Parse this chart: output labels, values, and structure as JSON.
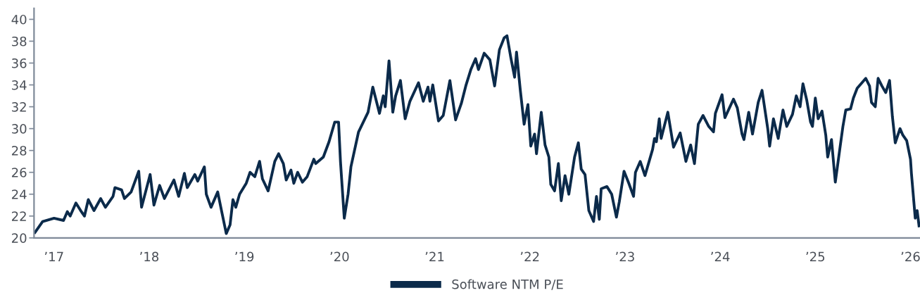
{
  "chart_data": {
    "type": "line",
    "x": [
      2016.8,
      2016.88,
      2017.0,
      2017.1,
      2017.14,
      2017.17,
      2017.23,
      2017.28,
      2017.32,
      2017.36,
      2017.42,
      2017.49,
      2017.54,
      2017.62,
      2017.64,
      2017.71,
      2017.74,
      2017.81,
      2017.89,
      2017.92,
      2018.01,
      2018.05,
      2018.11,
      2018.16,
      2018.26,
      2018.31,
      2018.37,
      2018.4,
      2018.48,
      2018.51,
      2018.58,
      2018.6,
      2018.65,
      2018.72,
      2018.76,
      2018.81,
      2018.85,
      2018.88,
      2018.91,
      2018.95,
      2019.02,
      2019.06,
      2019.11,
      2019.16,
      2019.19,
      2019.25,
      2019.32,
      2019.36,
      2019.41,
      2019.44,
      2019.49,
      2019.52,
      2019.56,
      2019.61,
      2019.66,
      2019.73,
      2019.75,
      2019.83,
      2019.89,
      2019.95,
      2019.99,
      2020.01,
      2020.05,
      2020.09,
      2020.12,
      2020.2,
      2020.3,
      2020.35,
      2020.42,
      2020.46,
      2020.48,
      2020.52,
      2020.56,
      2020.59,
      2020.64,
      2020.69,
      2020.74,
      2020.83,
      2020.88,
      2020.93,
      2020.95,
      2020.98,
      2021.04,
      2021.09,
      2021.16,
      2021.22,
      2021.28,
      2021.33,
      2021.38,
      2021.43,
      2021.46,
      2021.52,
      2021.58,
      2021.63,
      2021.68,
      2021.73,
      2021.76,
      2021.8,
      2021.84,
      2021.86,
      2021.9,
      2021.94,
      2021.98,
      2022.01,
      2022.05,
      2022.07,
      2022.12,
      2022.16,
      2022.2,
      2022.22,
      2022.26,
      2022.3,
      2022.33,
      2022.37,
      2022.41,
      2022.47,
      2022.51,
      2022.54,
      2022.58,
      2022.62,
      2022.67,
      2022.7,
      2022.73,
      2022.75,
      2022.81,
      2022.86,
      2022.91,
      2022.94,
      2022.99,
      2023.04,
      2023.09,
      2023.11,
      2023.16,
      2023.21,
      2023.29,
      2023.31,
      2023.33,
      2023.36,
      2023.38,
      2023.45,
      2023.51,
      2023.58,
      2023.64,
      2023.69,
      2023.73,
      2023.77,
      2023.82,
      2023.88,
      2023.93,
      2023.95,
      2024.02,
      2024.05,
      2024.14,
      2024.18,
      2024.23,
      2024.25,
      2024.3,
      2024.34,
      2024.4,
      2024.44,
      2024.5,
      2024.52,
      2024.56,
      2024.61,
      2024.66,
      2024.7,
      2024.76,
      2024.8,
      2024.84,
      2024.87,
      2024.91,
      2024.95,
      2024.97,
      2025.0,
      2025.03,
      2025.07,
      2025.11,
      2025.13,
      2025.17,
      2025.21,
      2025.26,
      2025.29,
      2025.32,
      2025.37,
      2025.4,
      2025.44,
      2025.49,
      2025.53,
      2025.57,
      2025.59,
      2025.63,
      2025.66,
      2025.7,
      2025.74,
      2025.78,
      2025.81,
      2025.84,
      2025.89,
      2025.92,
      2025.96,
      2026.0,
      2026.01,
      2026.05,
      2026.07,
      2026.09
    ],
    "series": [
      {
        "name": "Software NTM P/E",
        "color": "#0b2a4a",
        "values": [
          20.5,
          21.5,
          21.8,
          21.6,
          22.4,
          22.0,
          23.2,
          22.5,
          22.0,
          23.5,
          22.5,
          23.6,
          22.8,
          23.8,
          24.6,
          24.4,
          23.6,
          24.2,
          26.1,
          22.8,
          25.8,
          23.0,
          24.8,
          23.6,
          25.3,
          23.8,
          25.9,
          24.6,
          25.8,
          25.2,
          26.5,
          24.0,
          22.8,
          24.2,
          22.5,
          20.4,
          21.2,
          23.5,
          22.8,
          24.0,
          25.0,
          26.0,
          25.6,
          27.0,
          25.4,
          24.3,
          27.0,
          27.7,
          26.8,
          25.3,
          26.2,
          25.0,
          26.0,
          25.1,
          25.6,
          27.2,
          26.8,
          27.4,
          28.8,
          30.6,
          30.6,
          27.0,
          21.8,
          24.0,
          26.5,
          29.7,
          31.5,
          33.8,
          31.4,
          33.0,
          32.0,
          36.2,
          31.5,
          33.0,
          34.4,
          30.9,
          32.5,
          34.2,
          32.5,
          33.8,
          32.5,
          34.0,
          30.7,
          31.2,
          34.4,
          30.8,
          32.3,
          34.0,
          35.4,
          36.4,
          35.4,
          36.9,
          36.3,
          33.9,
          37.2,
          38.3,
          38.5,
          36.5,
          34.7,
          37.0,
          33.5,
          30.4,
          32.2,
          28.4,
          29.5,
          27.7,
          31.5,
          28.5,
          27.4,
          24.9,
          24.3,
          26.8,
          23.4,
          25.7,
          24.0,
          27.4,
          28.7,
          26.3,
          25.8,
          22.5,
          21.5,
          23.8,
          21.7,
          24.5,
          24.7,
          24.0,
          21.9,
          23.3,
          26.1,
          25.0,
          23.8,
          26.0,
          27.0,
          25.7,
          28.1,
          29.1,
          28.8,
          30.9,
          29.1,
          31.5,
          28.3,
          29.6,
          27.0,
          28.5,
          26.8,
          30.4,
          31.2,
          30.2,
          29.7,
          31.4,
          33.1,
          31.0,
          32.7,
          31.9,
          29.5,
          29.0,
          31.5,
          29.5,
          32.4,
          33.5,
          30.0,
          28.4,
          30.9,
          29.1,
          31.7,
          30.2,
          31.3,
          33.0,
          32.0,
          34.1,
          32.6,
          30.6,
          30.2,
          32.8,
          30.9,
          31.6,
          29.4,
          27.4,
          29.0,
          25.1,
          28.3,
          30.2,
          31.7,
          31.8,
          32.8,
          33.7,
          34.2,
          34.6,
          33.9,
          32.4,
          32.0,
          34.6,
          33.9,
          33.3,
          34.4,
          31.1,
          28.7,
          30.0,
          29.4,
          28.9,
          27.2,
          25.9,
          21.8,
          22.5,
          21.1
        ]
      }
    ],
    "xlim": [
      2016.79,
      2026.1
    ],
    "xticks": [
      {
        "value": 2017,
        "label": "’17"
      },
      {
        "value": 2018,
        "label": "’18"
      },
      {
        "value": 2019,
        "label": "’19"
      },
      {
        "value": 2020,
        "label": "’20"
      },
      {
        "value": 2021,
        "label": "’21"
      },
      {
        "value": 2022,
        "label": "’22"
      },
      {
        "value": 2023,
        "label": "’23"
      },
      {
        "value": 2024,
        "label": "’24"
      },
      {
        "value": 2025,
        "label": "’25"
      },
      {
        "value": 2026,
        "label": "’26"
      }
    ],
    "ylim": [
      20,
      41
    ],
    "yticks": [
      20,
      22,
      24,
      26,
      28,
      30,
      32,
      34,
      36,
      38,
      40
    ],
    "grid": false,
    "legend": "bottom",
    "marker": "none",
    "line_style": "solid"
  }
}
